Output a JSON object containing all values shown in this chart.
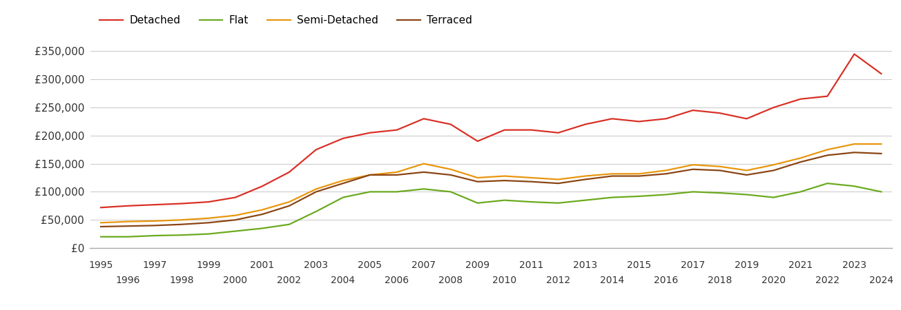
{
  "years": [
    1995,
    1996,
    1997,
    1998,
    1999,
    2000,
    2001,
    2002,
    2003,
    2004,
    2005,
    2006,
    2007,
    2008,
    2009,
    2010,
    2011,
    2012,
    2013,
    2014,
    2015,
    2016,
    2017,
    2018,
    2019,
    2020,
    2021,
    2022,
    2023,
    2024
  ],
  "detached": [
    72000,
    75000,
    77000,
    79000,
    82000,
    90000,
    110000,
    135000,
    175000,
    195000,
    205000,
    210000,
    230000,
    220000,
    190000,
    210000,
    210000,
    205000,
    220000,
    230000,
    225000,
    230000,
    245000,
    240000,
    230000,
    250000,
    265000,
    270000,
    345000,
    310000
  ],
  "flat": [
    20000,
    20000,
    22000,
    23000,
    25000,
    30000,
    35000,
    42000,
    65000,
    90000,
    100000,
    100000,
    105000,
    100000,
    80000,
    85000,
    82000,
    80000,
    85000,
    90000,
    92000,
    95000,
    100000,
    98000,
    95000,
    90000,
    100000,
    115000,
    110000,
    100000
  ],
  "semi_detached": [
    45000,
    47000,
    48000,
    50000,
    53000,
    58000,
    68000,
    82000,
    105000,
    120000,
    130000,
    135000,
    150000,
    140000,
    125000,
    128000,
    125000,
    122000,
    128000,
    132000,
    132000,
    138000,
    148000,
    145000,
    138000,
    148000,
    160000,
    175000,
    185000,
    185000
  ],
  "terraced": [
    38000,
    39000,
    40000,
    42000,
    45000,
    50000,
    60000,
    75000,
    100000,
    115000,
    130000,
    130000,
    135000,
    130000,
    118000,
    120000,
    118000,
    115000,
    122000,
    128000,
    128000,
    132000,
    140000,
    138000,
    130000,
    138000,
    153000,
    165000,
    170000,
    168000
  ],
  "series_colors": {
    "detached": "#d93025",
    "flat": "#6aaa1e",
    "semi_detached": "#e8960c",
    "terraced": "#8B4513"
  },
  "series_labels": {
    "detached": "Detached",
    "flat": "Flat",
    "semi_detached": "Semi-Detached",
    "terraced": "Terraced"
  },
  "ylim": [
    0,
    375000
  ],
  "yticks": [
    0,
    50000,
    100000,
    150000,
    200000,
    250000,
    300000,
    350000
  ],
  "xlim_left": 1994.6,
  "xlim_right": 2024.4,
  "background_color": "#ffffff",
  "grid_color": "#cccccc",
  "line_width": 1.6,
  "tick_fontsize": 10,
  "ytick_fontsize": 11,
  "legend_fontsize": 11
}
